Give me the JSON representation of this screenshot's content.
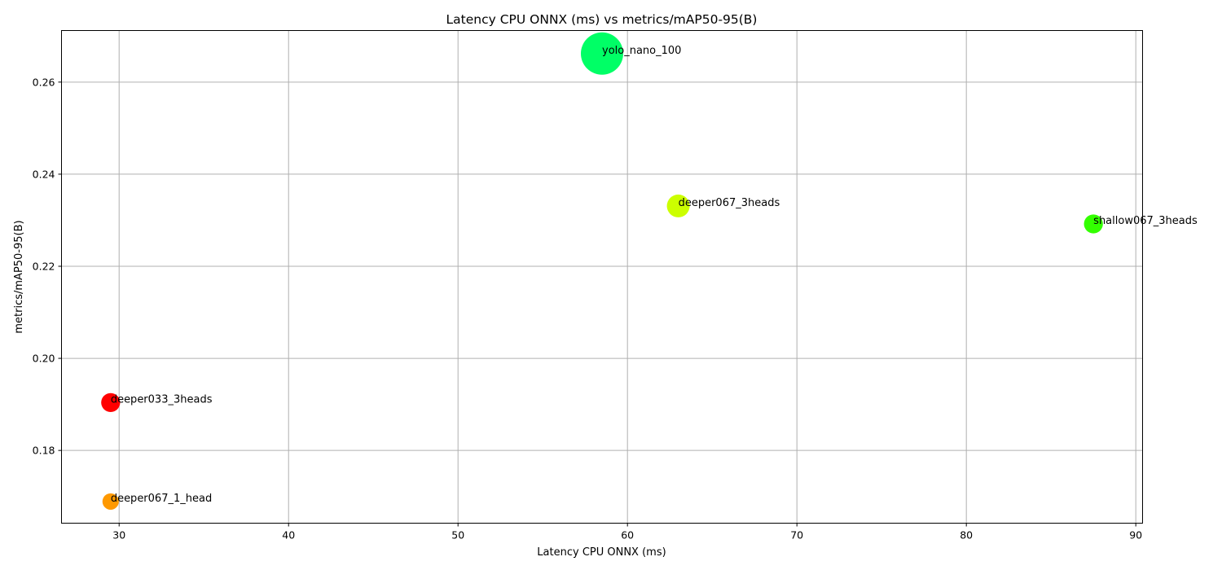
{
  "chart_data": {
    "type": "scatter",
    "title": "Latency CPU ONNX (ms) vs metrics/mAP50-95(B)",
    "xlabel": "Latency CPU ONNX (ms)",
    "ylabel": "metrics/mAP50-95(B)",
    "xlim": [
      26.6,
      90.4
    ],
    "ylim": [
      0.1642,
      0.2712
    ],
    "xticks": [
      30,
      40,
      50,
      60,
      70,
      80,
      90
    ],
    "yticks": [
      0.18,
      0.2,
      0.22,
      0.24,
      0.26
    ],
    "grid": true,
    "points": [
      {
        "label": "yolo_nano_100",
        "x": 58.5,
        "y": 0.2662,
        "color": "#00ff66",
        "size": 1.0
      },
      {
        "label": "deeper067_3heads",
        "x": 63.0,
        "y": 0.2331,
        "color": "#ccff00",
        "size": 0.29
      },
      {
        "label": "shallow067_3heads",
        "x": 87.5,
        "y": 0.2292,
        "color": "#33ff00",
        "size": 0.2
      },
      {
        "label": "deeper033_3heads",
        "x": 29.5,
        "y": 0.1904,
        "color": "#ff0000",
        "size": 0.2
      },
      {
        "label": "deeper067_1_head",
        "x": 29.5,
        "y": 0.1689,
        "color": "#ff9900",
        "size": 0.15
      }
    ]
  }
}
